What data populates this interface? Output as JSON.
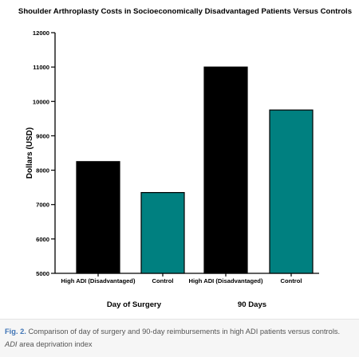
{
  "chart_data": {
    "type": "bar",
    "title": "Shoulder Arthroplasty Costs in Socioeconomically Disadvantaged Patients Versus Controls",
    "ylabel": "Dollars (USD)",
    "ylim": [
      5000,
      12000
    ],
    "yticks": [
      5000,
      6000,
      7000,
      8000,
      9000,
      10000,
      11000,
      12000
    ],
    "grid": false,
    "bars": [
      {
        "label": "High ADI (Disadvantaged)",
        "group": "Day of Surgery",
        "value": 8250,
        "color": "#000000"
      },
      {
        "label": "Control",
        "group": "Day of Surgery",
        "value": 7350,
        "color": "#008080"
      },
      {
        "label": "High ADI (Disadvantaged)",
        "group": "90 Days",
        "value": 11000,
        "color": "#000000"
      },
      {
        "label": "Control",
        "group": "90 Days",
        "value": 9750,
        "color": "#008080"
      }
    ],
    "groups": [
      "Day of Surgery",
      "90 Days"
    ]
  },
  "caption": {
    "label": "Fig. 2.",
    "text": " Comparison of day of surgery and 90-day reimbursements in high ADI patients versus controls. ",
    "abbr": "ADI",
    "abbr_text": " area deprivation index"
  }
}
